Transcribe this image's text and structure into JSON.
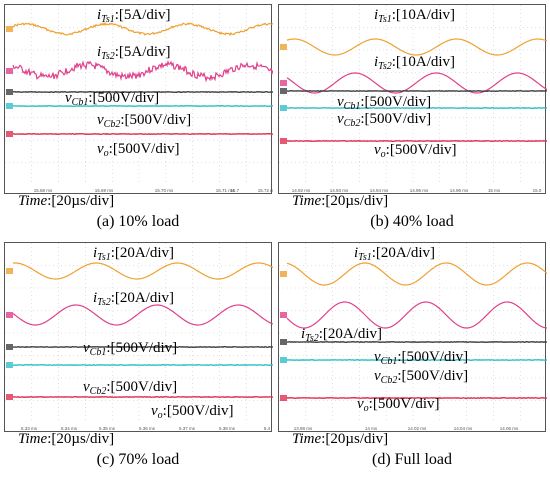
{
  "figure": {
    "panels": [
      {
        "caption": "(a) 10% load",
        "time_label": "Time",
        "time_scale": ":[20µs/div]",
        "tick_labels": [
          "15.68 ms",
          "15.69 ms",
          "15.70 ms",
          "15.71 ms",
          "15.72 ms",
          "15.7"
        ],
        "channels": [
          {
            "sym": "i",
            "sub": "Ts1",
            "scale": ":[5A/div]",
            "color": "#f0a030"
          },
          {
            "sym": "i",
            "sub": "Ts2",
            "scale": ":[5A/div]",
            "color": "#e0408a"
          },
          {
            "sym": "v",
            "sub": "Cb1",
            "scale": ":[500V/div]",
            "color": "#404040"
          },
          {
            "sym": "v",
            "sub": "Cb2",
            "scale": ":[500V/div]",
            "color": "#30c0c8"
          },
          {
            "sym": "v",
            "sub": "o",
            "scale": ":[500V/div]",
            "color": "#e03050"
          }
        ]
      },
      {
        "caption": "(b) 40% load",
        "time_label": "Time",
        "time_scale": ":[20µs/div]",
        "tick_labels": [
          "14.92 ms",
          "14.93 ms",
          "14.94 ms",
          "14.95 ms",
          "14.96 ms",
          "15 ms",
          "15.0"
        ],
        "channels": [
          {
            "sym": "i",
            "sub": "Ts1",
            "scale": ":[10A/div]",
            "color": "#f0a030"
          },
          {
            "sym": "i",
            "sub": "Ts2",
            "scale": ":[10A/div]",
            "color": "#e0408a"
          },
          {
            "sym": "v",
            "sub": "Cb1",
            "scale": ":[500V/div]",
            "color": "#404040"
          },
          {
            "sym": "v",
            "sub": "Cb2",
            "scale": ":[500V/div]",
            "color": "#30c0c8"
          },
          {
            "sym": "v",
            "sub": "o",
            "scale": ":[500V/div]",
            "color": "#e03050"
          }
        ]
      },
      {
        "caption": "(c) 70% load",
        "time_label": "Time",
        "time_scale": ":[20µs/div]",
        "tick_labels": [
          "5.33 ms",
          "5.34 ms",
          "5.35 ms",
          "5.36 ms",
          "5.37 ms",
          "5.38 ms",
          "5.4"
        ],
        "channels": [
          {
            "sym": "i",
            "sub": "Ts1",
            "scale": ":[20A/div]",
            "color": "#f0a030"
          },
          {
            "sym": "i",
            "sub": "Ts2",
            "scale": ":[20A/div]",
            "color": "#e0408a"
          },
          {
            "sym": "v",
            "sub": "Cb1",
            "scale": ":[500V/div]",
            "color": "#404040"
          },
          {
            "sym": "v",
            "sub": "Cb2",
            "scale": ":[500V/div]",
            "color": "#30c0c8"
          },
          {
            "sym": "v",
            "sub": "o",
            "scale": ":[500V/div]",
            "color": "#e03050"
          }
        ]
      },
      {
        "caption": "(d) Full load",
        "time_label": "Time",
        "time_scale": ":[20µs/div]",
        "tick_labels": [
          "13.98 ms",
          "14 ms",
          "14.02 ms",
          "14.04 ms",
          "14.06 ms"
        ],
        "channels": [
          {
            "sym": "i",
            "sub": "Ts1",
            "scale": ":[20A/div]",
            "color": "#f0a030"
          },
          {
            "sym": "i",
            "sub": "Ts2",
            "scale": ":[20A/div]",
            "color": "#e0408a"
          },
          {
            "sym": "v",
            "sub": "Cb1",
            "scale": ":[500V/div]",
            "color": "#404040"
          },
          {
            "sym": "v",
            "sub": "Cb2",
            "scale": ":[500V/div]",
            "color": "#30c0c8"
          },
          {
            "sym": "v",
            "sub": "o",
            "scale": ":[500V/div]",
            "color": "#e03050"
          }
        ]
      }
    ]
  },
  "chart_data": [
    {
      "type": "line",
      "title": "(a) 10% load",
      "xlabel": "Time:[20µs/div]",
      "series": [
        {
          "name": "iTs1",
          "amplitude_div": 0.25,
          "cycles": 3.3
        },
        {
          "name": "iTs2",
          "amplitude_div": 0.35,
          "cycles": 3.3
        },
        {
          "name": "vCb1",
          "values": "dc"
        },
        {
          "name": "vCb2",
          "values": "dc"
        },
        {
          "name": "vo",
          "values": "dc"
        }
      ]
    },
    {
      "type": "line",
      "title": "(b) 40% load",
      "xlabel": "Time:[20µs/div]",
      "series": [
        {
          "name": "iTs1",
          "amplitude_div": 0.5,
          "cycles": 3.3
        },
        {
          "name": "iTs2",
          "amplitude_div": 0.5,
          "cycles": 3.3
        },
        {
          "name": "vCb1",
          "values": "dc"
        },
        {
          "name": "vCb2",
          "values": "dc"
        },
        {
          "name": "vo",
          "values": "dc"
        }
      ]
    },
    {
      "type": "line",
      "title": "(c) 70% load",
      "xlabel": "Time:[20µs/div]",
      "series": [
        {
          "name": "iTs1",
          "amplitude_div": 0.5,
          "cycles": 3.3
        },
        {
          "name": "iTs2",
          "amplitude_div": 0.5,
          "cycles": 3.3
        },
        {
          "name": "vCb1",
          "values": "dc"
        },
        {
          "name": "vCb2",
          "values": "dc"
        },
        {
          "name": "vo",
          "values": "dc"
        }
      ]
    },
    {
      "type": "line",
      "title": "(d) Full load",
      "xlabel": "Time:[20µs/div]",
      "series": [
        {
          "name": "iTs1",
          "amplitude_div": 0.75,
          "cycles": 3.3
        },
        {
          "name": "iTs2",
          "amplitude_div": 0.75,
          "cycles": 3.3
        },
        {
          "name": "vCb1",
          "values": "dc"
        },
        {
          "name": "vCb2",
          "values": "dc"
        },
        {
          "name": "vo",
          "values": "dc"
        }
      ]
    }
  ]
}
